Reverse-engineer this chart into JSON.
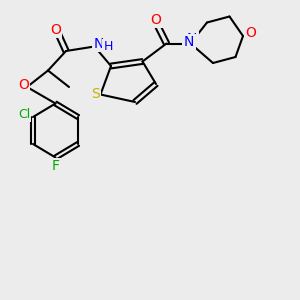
{
  "bg_color": "#ececec",
  "bond_color": "#000000",
  "bond_width": 1.5,
  "atom_colors": {
    "S": "#c8b400",
    "O": "#ff0000",
    "N": "#0000ff",
    "Cl": "#00aa00",
    "F": "#00aa00",
    "C": "#000000",
    "H": "#0000ff"
  },
  "font_size": 9,
  "label_font_size": 9
}
